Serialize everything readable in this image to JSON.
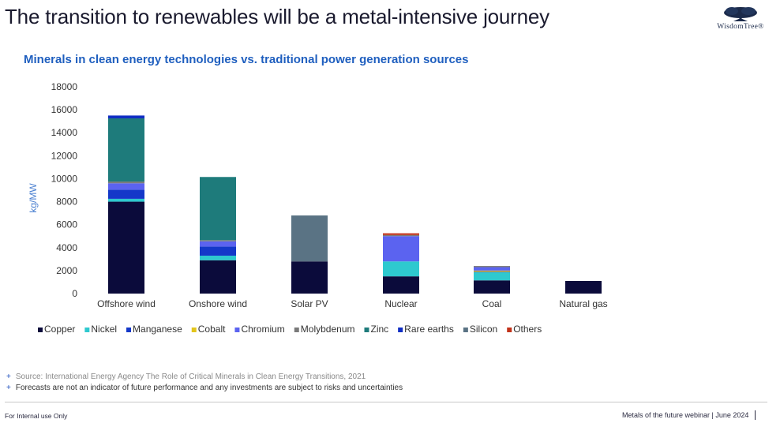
{
  "slide": {
    "title": "The transition to renewables will be a metal-intensive journey",
    "logo_text": "WisdomTree®"
  },
  "chart_data": {
    "type": "bar",
    "stacked": true,
    "title": "Minerals in clean energy technologies vs. traditional power generation sources",
    "ylabel": "kg/MW",
    "xlabel": "",
    "ylim": [
      0,
      18000
    ],
    "yticks": [
      0,
      2000,
      4000,
      6000,
      8000,
      10000,
      12000,
      14000,
      16000,
      18000
    ],
    "grid": false,
    "legend_position": "bottom",
    "categories": [
      "Offshore wind",
      "Onshore wind",
      "Solar PV",
      "Nuclear",
      "Coal",
      "Natural gas"
    ],
    "series": [
      {
        "name": "Copper",
        "color": "#0b0b3b",
        "values": [
          8000,
          2900,
          2800,
          1500,
          1150,
          1100
        ]
      },
      {
        "name": "Nickel",
        "color": "#2ec9cf",
        "values": [
          250,
          400,
          0,
          1300,
          700,
          0
        ]
      },
      {
        "name": "Manganese",
        "color": "#1438c9",
        "values": [
          800,
          800,
          0,
          0,
          50,
          0
        ]
      },
      {
        "name": "Cobalt",
        "color": "#e3c51c",
        "values": [
          0,
          0,
          0,
          0,
          100,
          0
        ]
      },
      {
        "name": "Chromium",
        "color": "#5b63f0",
        "values": [
          550,
          450,
          0,
          2200,
          300,
          0
        ]
      },
      {
        "name": "Molybdenum",
        "color": "#7a7a7a",
        "values": [
          150,
          100,
          0,
          100,
          100,
          0
        ]
      },
      {
        "name": "Zinc",
        "color": "#1e7b7b",
        "values": [
          5500,
          5500,
          0,
          0,
          0,
          0
        ]
      },
      {
        "name": "Rare earths",
        "color": "#102ec4",
        "values": [
          250,
          0,
          0,
          0,
          0,
          0
        ]
      },
      {
        "name": "Silicon",
        "color": "#5a7384",
        "values": [
          0,
          0,
          4000,
          0,
          0,
          0
        ]
      },
      {
        "name": "Others",
        "color": "#c2331a",
        "values": [
          0,
          0,
          0,
          150,
          0,
          0
        ]
      }
    ]
  },
  "notes": {
    "source": "Source: International Energy Agency The Role of Critical Minerals in Clean Energy Transitions, 2021",
    "disclaimer": "Forecasts are not an indicator of future performance and any investments are subject to risks and uncertainties",
    "bullet": "+"
  },
  "footer": {
    "left": "For Internal use Only",
    "right": "Metals of the future webinar | June 2024"
  }
}
